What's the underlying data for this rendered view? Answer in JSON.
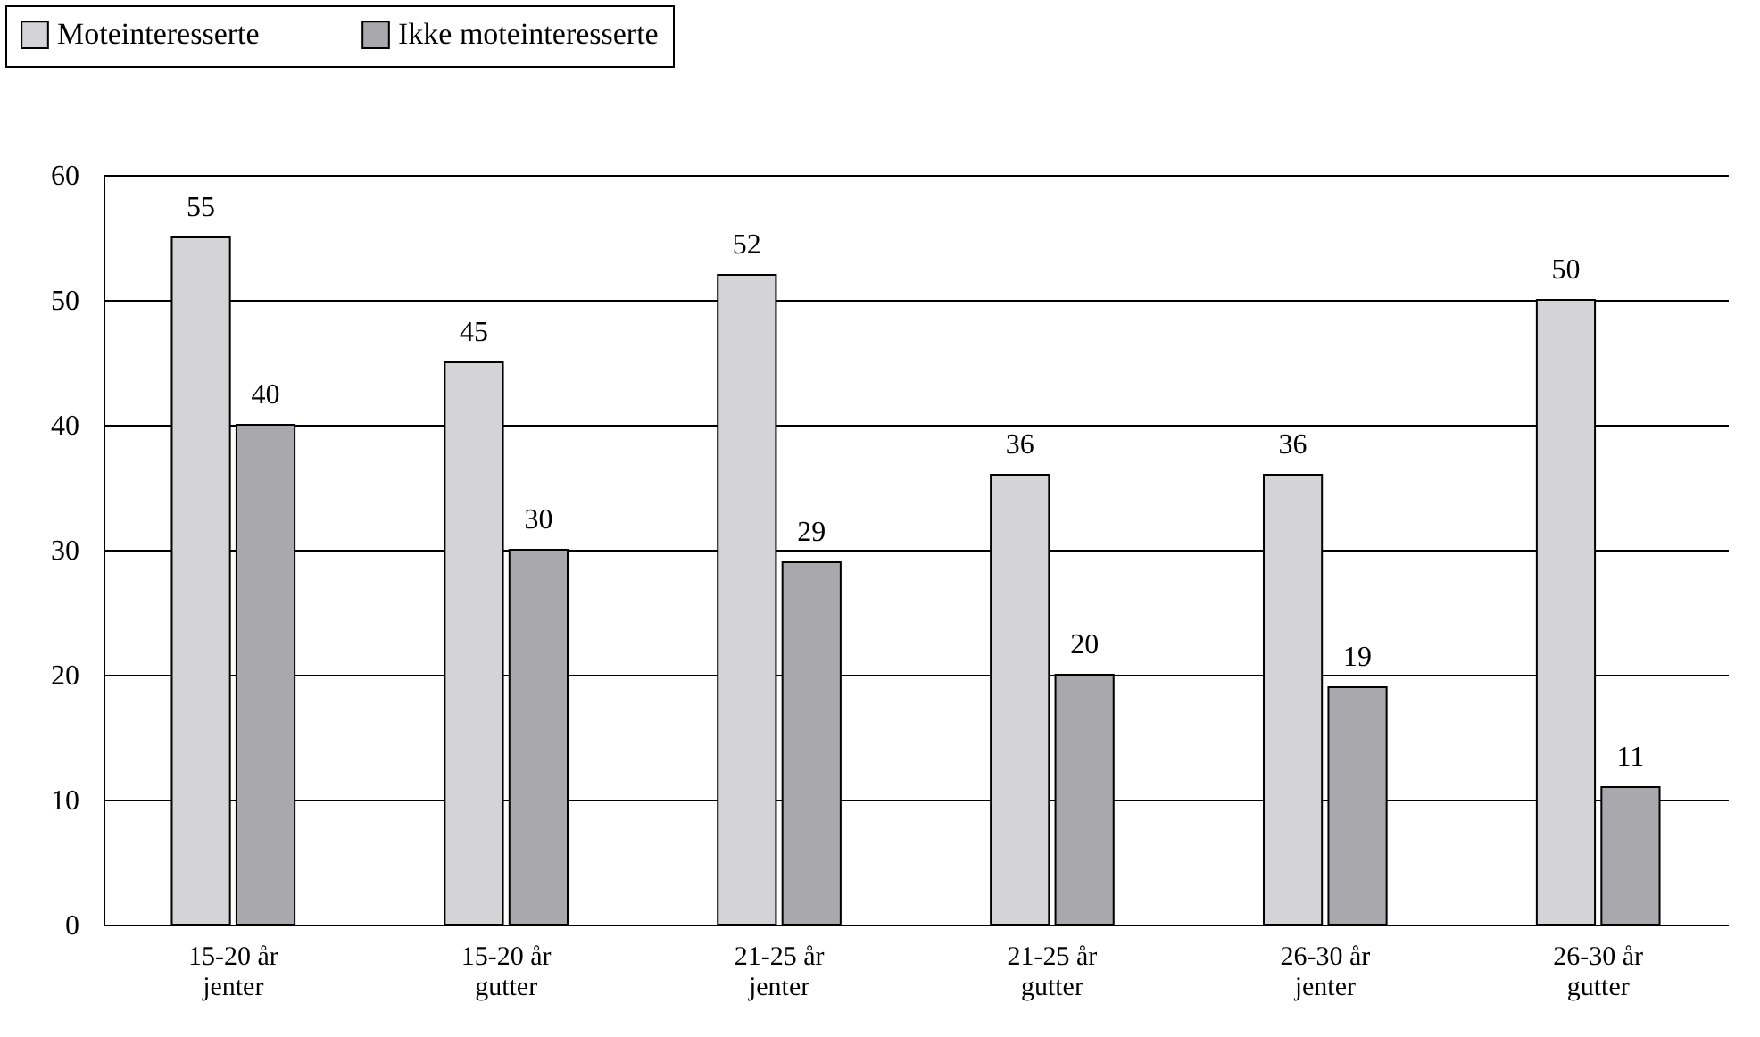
{
  "chart_data": {
    "type": "bar",
    "categories": [
      "15-20 år\njenter",
      "15-20 år\ngutter",
      "21-25 år\njenter",
      "21-25 år\ngutter",
      "26-30 år\njenter",
      "26-30 år\ngutter"
    ],
    "series": [
      {
        "name": "Moteinteresserte",
        "color": "#d4d4d6",
        "values": [
          55,
          45,
          52,
          36,
          36,
          50
        ]
      },
      {
        "name": "Ikke moteinteresserte",
        "color": "#a9a9ad",
        "values": [
          40,
          30,
          29,
          20,
          19,
          11
        ]
      }
    ],
    "ylim": [
      0,
      60
    ],
    "yticks": [
      0,
      10,
      20,
      30,
      40,
      50,
      60
    ],
    "grid": "y",
    "legend": "top left",
    "data_labels": true
  }
}
